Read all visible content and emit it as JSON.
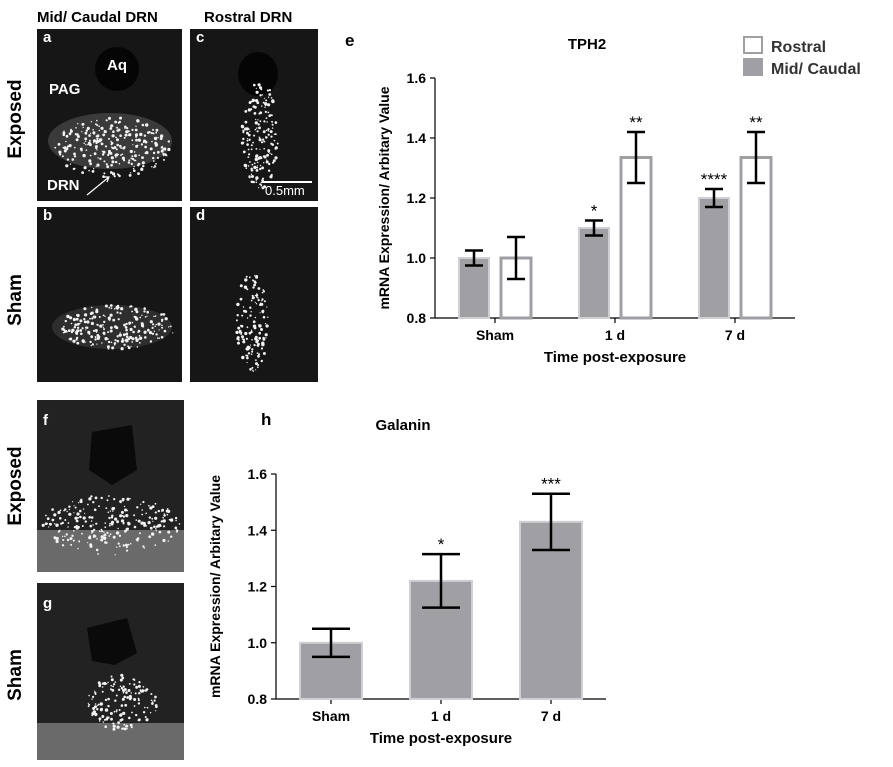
{
  "panels": {
    "col_mid_caudal": "Mid/ Caudal DRN",
    "col_rostral": "Rostral DRN",
    "row_exposed": "Exposed",
    "row_sham": "Sham",
    "a": {
      "letter": "a",
      "aq": "Aq",
      "pag": "PAG",
      "drn": "DRN"
    },
    "b": {
      "letter": "b"
    },
    "c": {
      "letter": "c",
      "scale": "0.5mm"
    },
    "d": {
      "letter": "d"
    },
    "f": {
      "letter": "f"
    },
    "g": {
      "letter": "g"
    },
    "e_letter": "e",
    "h_letter": "h"
  },
  "chart_data": [
    {
      "type": "bar",
      "title": "TPH2",
      "xlabel": "Time post-exposure",
      "ylabel": "mRNA Expression/ Arbitary Value",
      "ylim": [
        0.8,
        1.6
      ],
      "yticks": [
        "0.8",
        "1.0",
        "1.2",
        "1.4",
        "1.6"
      ],
      "categories": [
        "Sham",
        "1 d",
        "7 d"
      ],
      "legend_position": "top-right",
      "series": [
        {
          "name": "Mid/ Caudal",
          "color": "#a0a0a4",
          "values": [
            1.0,
            1.1,
            1.2
          ],
          "errors": [
            0.025,
            0.025,
            0.03
          ],
          "annotations": [
            "",
            "*",
            "****"
          ]
        },
        {
          "name": "Rostral",
          "color": "#ffffff",
          "values": [
            1.0,
            1.335,
            1.335
          ],
          "errors": [
            0.07,
            0.085,
            0.085
          ],
          "annotations": [
            "",
            "**",
            "**"
          ]
        }
      ]
    },
    {
      "type": "bar",
      "title": "Galanin",
      "xlabel": "Time post-exposure",
      "ylabel": "mRNA Expression/ Arbitary Value",
      "ylim": [
        0.8,
        1.6
      ],
      "yticks": [
        "0.8",
        "1.0",
        "1.2",
        "1.4",
        "1.6"
      ],
      "categories": [
        "Sham",
        "1 d",
        "7 d"
      ],
      "series": [
        {
          "color": "#a0a0a4",
          "values": [
            1.0,
            1.22,
            1.43
          ],
          "errors": [
            0.05,
            0.095,
            0.1
          ],
          "annotations": [
            "",
            "*",
            "***"
          ]
        }
      ]
    }
  ]
}
